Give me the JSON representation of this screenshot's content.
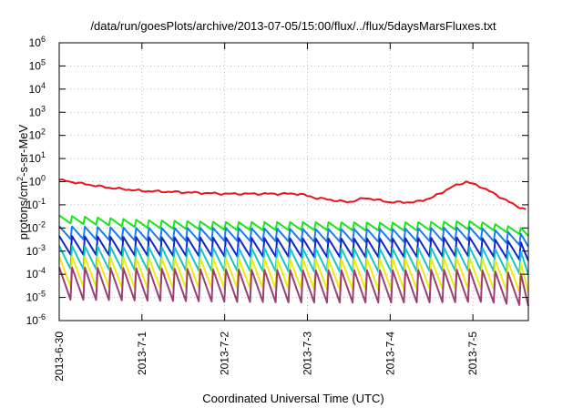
{
  "chart_data": {
    "type": "line",
    "title": "/data/run/goesPlots/archive/2013-07-05/15:00/flux/../flux/5daysMarsFluxes.txt",
    "xlabel": "Coordinated Universal Time (UTC)",
    "ylabel_main": "protons/cm",
    "ylabel_sup": "2",
    "ylabel_rest": "-s-sr-MeV",
    "x_range_days": [
      0,
      5.67
    ],
    "x_ticks": [
      {
        "label": "2013-6-30",
        "day": 0
      },
      {
        "label": "2013-7-1",
        "day": 1
      },
      {
        "label": "2013-7-2",
        "day": 2
      },
      {
        "label": "2013-7-3",
        "day": 3
      },
      {
        "label": "2013-7-4",
        "day": 4
      },
      {
        "label": "2013-7-5",
        "day": 5
      }
    ],
    "y_scale": "log",
    "ylim": [
      1e-06,
      1000000.0
    ],
    "y_ticks": [
      {
        "base": "10",
        "exp": "-6",
        "value": 1e-06
      },
      {
        "base": "10",
        "exp": "-5",
        "value": 1e-05
      },
      {
        "base": "10",
        "exp": "-4",
        "value": 0.0001
      },
      {
        "base": "10",
        "exp": "-3",
        "value": 0.001
      },
      {
        "base": "10",
        "exp": "-2",
        "value": 0.01
      },
      {
        "base": "10",
        "exp": "-1",
        "value": 0.1
      },
      {
        "base": "10",
        "exp": "0",
        "value": 1
      },
      {
        "base": "10",
        "exp": "1",
        "value": 10.0
      },
      {
        "base": "10",
        "exp": "2",
        "value": 100.0
      },
      {
        "base": "10",
        "exp": "3",
        "value": 1000.0
      },
      {
        "base": "10",
        "exp": "4",
        "value": 10000.0
      },
      {
        "base": "10",
        "exp": "5",
        "value": 100000.0
      },
      {
        "base": "10",
        "exp": "6",
        "value": 1000000.0
      }
    ],
    "grid": true,
    "series": [
      {
        "color": "#e8141c",
        "sawtooth": false,
        "points": [
          [
            0,
            1.2
          ],
          [
            0.3,
            0.8
          ],
          [
            0.6,
            0.55
          ],
          [
            1.0,
            0.4
          ],
          [
            1.5,
            0.35
          ],
          [
            2.0,
            0.3
          ],
          [
            2.5,
            0.3
          ],
          [
            2.9,
            0.3
          ],
          [
            3.1,
            0.2
          ],
          [
            3.5,
            0.13
          ],
          [
            3.7,
            0.2
          ],
          [
            4.0,
            0.13
          ],
          [
            4.3,
            0.13
          ],
          [
            4.5,
            0.2
          ],
          [
            4.75,
            0.6
          ],
          [
            4.92,
            1.0
          ],
          [
            5.1,
            0.6
          ],
          [
            5.3,
            0.25
          ],
          [
            5.5,
            0.1
          ],
          [
            5.67,
            0.055
          ]
        ]
      },
      {
        "color": "#19e61a",
        "sawtooth": true,
        "base": [
          [
            0,
            0.035
          ],
          [
            0.5,
            0.028
          ],
          [
            1.0,
            0.022
          ],
          [
            2.0,
            0.018
          ],
          [
            3.0,
            0.018
          ],
          [
            4.0,
            0.017
          ],
          [
            5.0,
            0.02
          ],
          [
            5.67,
            0.009
          ]
        ],
        "dip": 0.45
      },
      {
        "color": "#1a7cf0",
        "sawtooth": true,
        "base": [
          [
            0,
            0.012
          ],
          [
            1.0,
            0.01
          ],
          [
            2.0,
            0.01
          ],
          [
            3.0,
            0.009
          ],
          [
            4.0,
            0.009
          ],
          [
            5.0,
            0.011
          ],
          [
            5.67,
            0.005
          ]
        ],
        "dip": 0.28
      },
      {
        "color": "#1026c8",
        "sawtooth": true,
        "base": [
          [
            0,
            0.0045
          ],
          [
            1.0,
            0.004
          ],
          [
            2.0,
            0.0038
          ],
          [
            3.0,
            0.0035
          ],
          [
            4.0,
            0.0035
          ],
          [
            5.0,
            0.004
          ],
          [
            5.67,
            0.0022
          ]
        ],
        "dip": 0.16
      },
      {
        "color": "#19c4c8",
        "sawtooth": true,
        "base": [
          [
            0,
            0.0017
          ],
          [
            1.0,
            0.0015
          ],
          [
            2.0,
            0.0014
          ],
          [
            3.0,
            0.0013
          ],
          [
            4.0,
            0.0013
          ],
          [
            5.0,
            0.0015
          ],
          [
            5.67,
            0.0009
          ]
        ],
        "dip": 0.1
      },
      {
        "color": "#ecec14",
        "sawtooth": true,
        "base": [
          [
            0,
            0.0006
          ],
          [
            1.0,
            0.0005
          ],
          [
            2.0,
            0.0005
          ],
          [
            3.0,
            0.00045
          ],
          [
            4.0,
            0.00045
          ],
          [
            5.0,
            0.0005
          ],
          [
            5.67,
            0.0003
          ]
        ],
        "dip": 0.05
      },
      {
        "color": "#9b3f76",
        "sawtooth": true,
        "base": [
          [
            0,
            0.0002
          ],
          [
            1.0,
            0.00018
          ],
          [
            2.0,
            0.00016
          ],
          [
            3.0,
            0.00015
          ],
          [
            4.0,
            0.00015
          ],
          [
            5.0,
            0.00016
          ],
          [
            5.67,
            0.0001
          ]
        ],
        "dip": 0.04
      }
    ],
    "sawtooth_period_days": 0.155
  }
}
